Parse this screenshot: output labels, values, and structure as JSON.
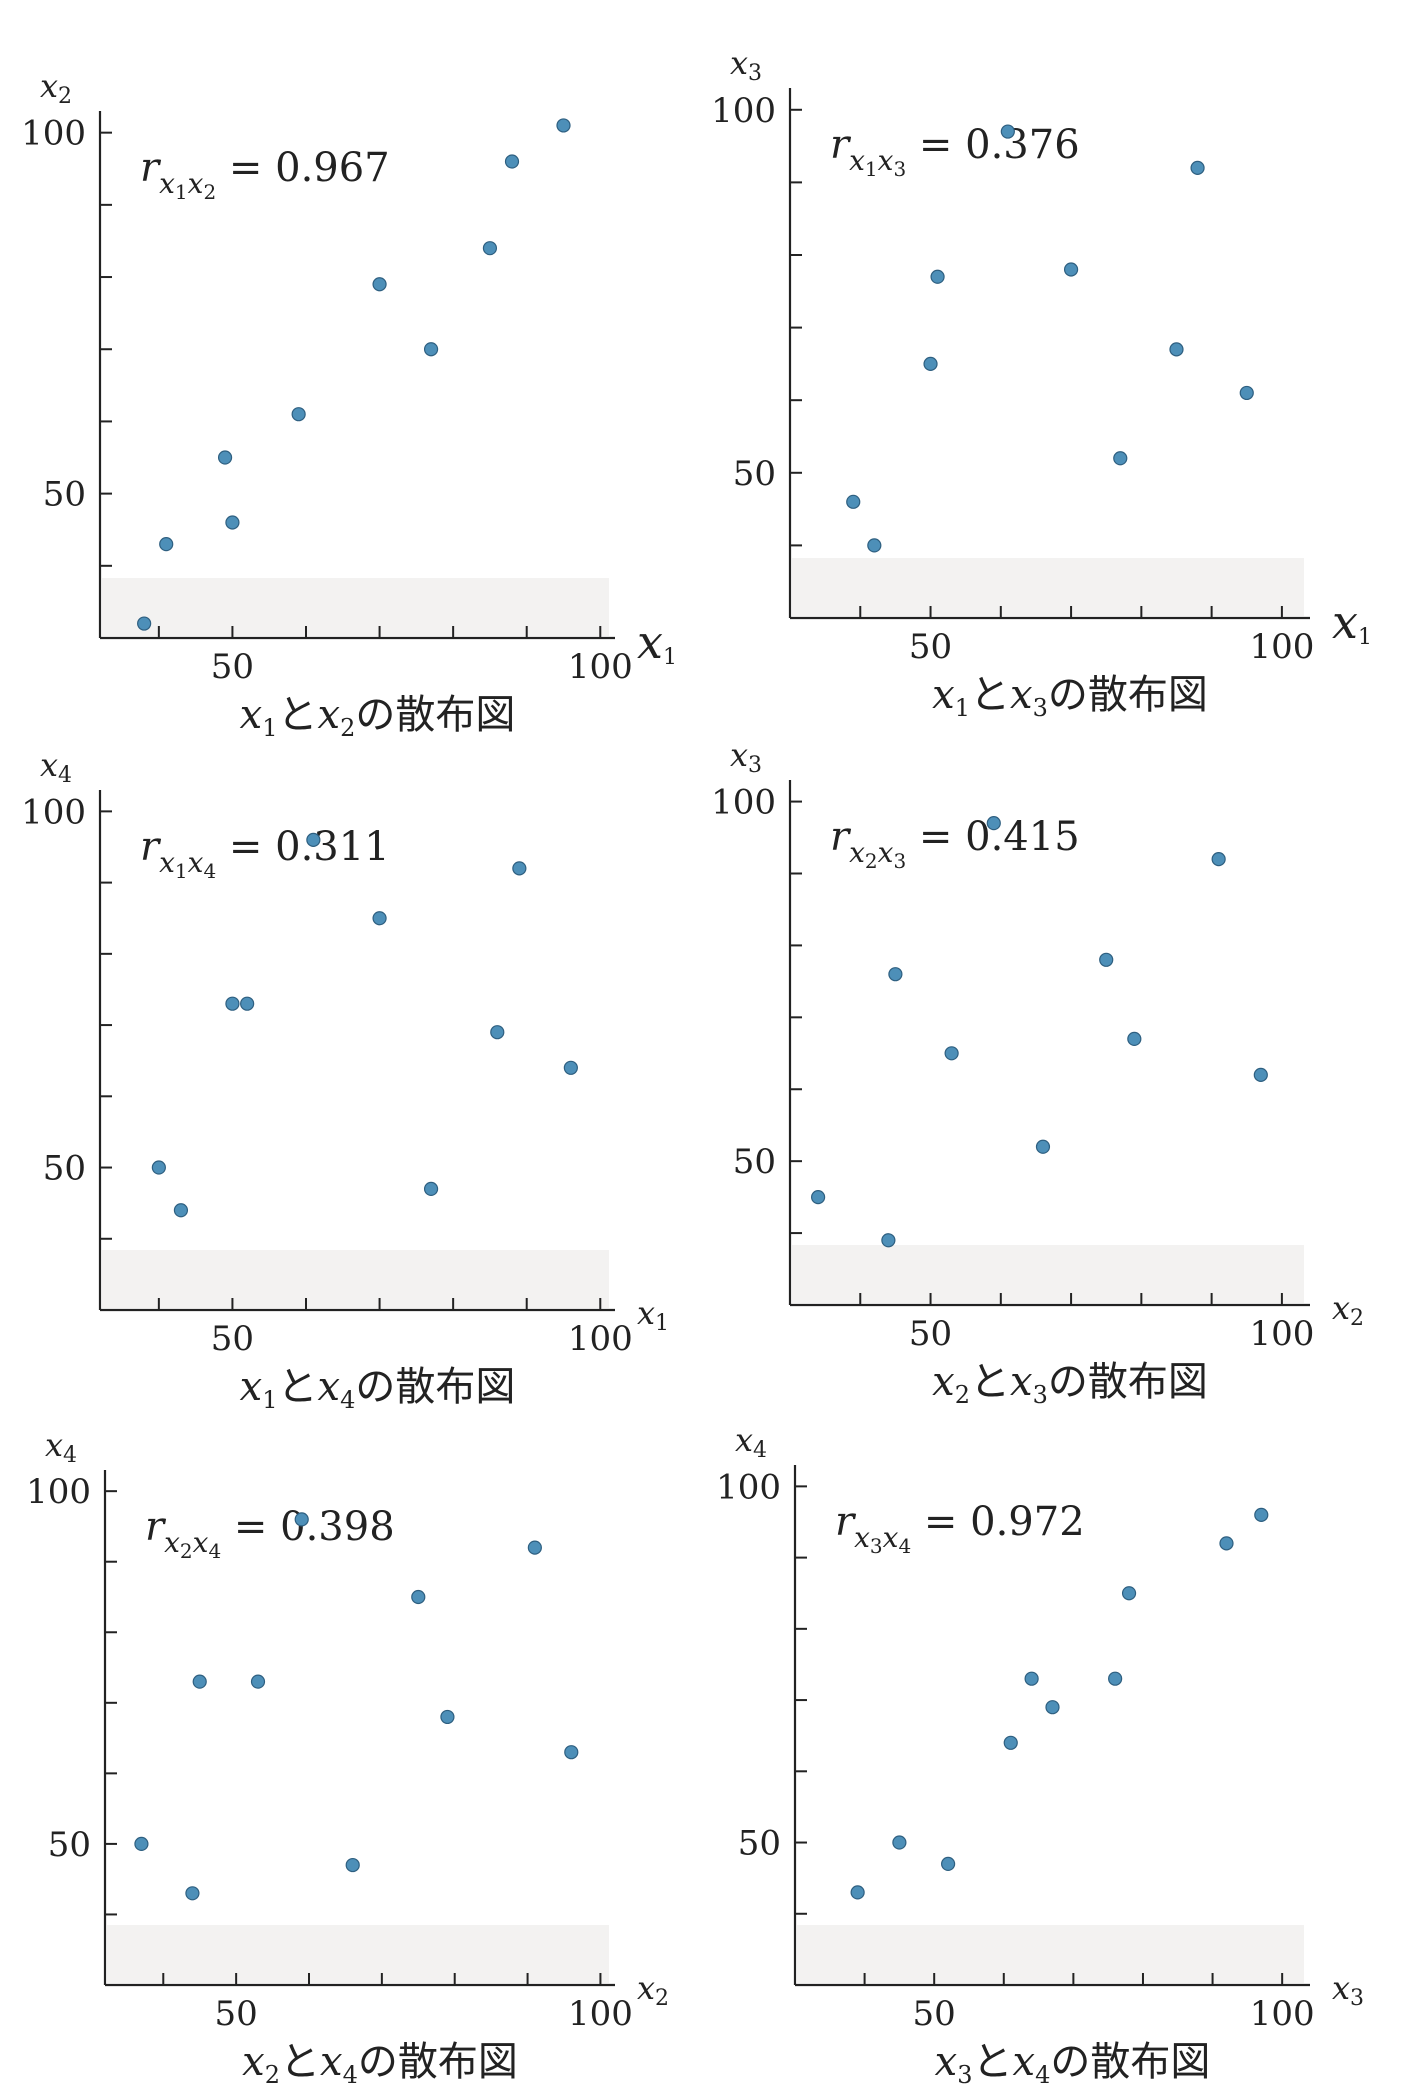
{
  "chart_data": [
    {
      "type": "scatter",
      "caption_parts": [
        "x",
        "1",
        "と",
        "x",
        "2",
        "の散布図"
      ],
      "xlabel": {
        "var": "x",
        "sub": "1"
      },
      "ylabel": {
        "var": "x",
        "sub": "2"
      },
      "correlation": {
        "r": "r",
        "sub1": "x",
        "subsub1": "1",
        "sub2": "x",
        "subsub2": "2",
        "eq": " = 0.967"
      },
      "x_ticks": [
        "50",
        "100"
      ],
      "y_ticks": [
        "50",
        "100"
      ],
      "xlim": [
        32,
        102
      ],
      "ylim": [
        30,
        103
      ],
      "points": [
        [
          38,
          32
        ],
        [
          41,
          43
        ],
        [
          49,
          55
        ],
        [
          50,
          46
        ],
        [
          59,
          61
        ],
        [
          70,
          79
        ],
        [
          77,
          70
        ],
        [
          85,
          84
        ],
        [
          88,
          96
        ],
        [
          95,
          101
        ]
      ]
    },
    {
      "type": "scatter",
      "caption_parts": [
        "x",
        "1",
        "と",
        "x",
        "3",
        "の散布図"
      ],
      "xlabel": {
        "var": "x",
        "sub": "1"
      },
      "ylabel": {
        "var": "x",
        "sub": "3"
      },
      "correlation": {
        "r": "r",
        "sub1": "x",
        "subsub1": "1",
        "sub2": "x",
        "subsub2": "3",
        "eq": " = 0.376"
      },
      "x_ticks": [
        "50",
        "100"
      ],
      "y_ticks": [
        "50",
        "100"
      ],
      "xlim": [
        30,
        104
      ],
      "ylim": [
        30,
        103
      ],
      "points": [
        [
          39,
          46
        ],
        [
          42,
          40
        ],
        [
          50,
          65
        ],
        [
          51,
          77
        ],
        [
          61,
          97
        ],
        [
          70,
          78
        ],
        [
          77,
          52
        ],
        [
          85,
          67
        ],
        [
          88,
          92
        ],
        [
          95,
          61
        ]
      ]
    },
    {
      "type": "scatter",
      "caption_parts": [
        "x",
        "1",
        "と",
        "x",
        "4",
        "の散布図"
      ],
      "xlabel": {
        "var": "x",
        "sub": "1"
      },
      "ylabel": {
        "var": "x",
        "sub": "4"
      },
      "correlation": {
        "r": "r",
        "sub1": "x",
        "subsub1": "1",
        "sub2": "x",
        "subsub2": "4",
        "eq": " = 0.311"
      },
      "x_ticks": [
        "50",
        "100"
      ],
      "y_ticks": [
        "50",
        "100"
      ],
      "xlim": [
        32,
        102
      ],
      "ylim": [
        30,
        103
      ],
      "points": [
        [
          40,
          50
        ],
        [
          43,
          44
        ],
        [
          50,
          73
        ],
        [
          52,
          73
        ],
        [
          61,
          96
        ],
        [
          70,
          85
        ],
        [
          77,
          47
        ],
        [
          86,
          69
        ],
        [
          89,
          92
        ],
        [
          96,
          64
        ]
      ]
    },
    {
      "type": "scatter",
      "caption_parts": [
        "x",
        "2",
        "と",
        "x",
        "3",
        "の散布図"
      ],
      "xlabel": {
        "var": "x",
        "sub": "2"
      },
      "ylabel": {
        "var": "x",
        "sub": "3"
      },
      "correlation": {
        "r": "r",
        "sub1": "x",
        "subsub1": "2",
        "sub2": "x",
        "subsub2": "3",
        "eq": " = 0.415"
      },
      "x_ticks": [
        "50",
        "100"
      ],
      "y_ticks": [
        "50",
        "100"
      ],
      "xlim": [
        30,
        104
      ],
      "ylim": [
        30,
        103
      ],
      "points": [
        [
          34,
          45
        ],
        [
          44,
          39
        ],
        [
          45,
          76
        ],
        [
          53,
          65
        ],
        [
          59,
          97
        ],
        [
          66,
          52
        ],
        [
          75,
          78
        ],
        [
          79,
          67
        ],
        [
          91,
          92
        ],
        [
          97,
          62
        ]
      ]
    },
    {
      "type": "scatter",
      "caption_parts": [
        "x",
        "2",
        "と",
        "x",
        "4",
        "の散布図"
      ],
      "xlabel": {
        "var": "x",
        "sub": "2"
      },
      "ylabel": {
        "var": "x",
        "sub": "4"
      },
      "correlation": {
        "r": "r",
        "sub1": "x",
        "subsub1": "2",
        "sub2": "x",
        "subsub2": "4",
        "eq": " = 0.398"
      },
      "x_ticks": [
        "50",
        "100"
      ],
      "y_ticks": [
        "50",
        "100"
      ],
      "xlim": [
        32,
        102
      ],
      "ylim": [
        30,
        103
      ],
      "points": [
        [
          37,
          50
        ],
        [
          44,
          43
        ],
        [
          45,
          73
        ],
        [
          53,
          73
        ],
        [
          59,
          96
        ],
        [
          66,
          47
        ],
        [
          75,
          85
        ],
        [
          79,
          68
        ],
        [
          91,
          92
        ],
        [
          96,
          63
        ]
      ]
    },
    {
      "type": "scatter",
      "caption_parts": [
        "x",
        "3",
        "と",
        "x",
        "4",
        "の散布図"
      ],
      "xlabel": {
        "var": "x",
        "sub": "3"
      },
      "ylabel": {
        "var": "x",
        "sub": "4"
      },
      "correlation": {
        "r": "r",
        "sub1": "x",
        "subsub1": "3",
        "sub2": "x",
        "subsub2": "4",
        "eq": " = 0.972"
      },
      "x_ticks": [
        "50",
        "100"
      ],
      "y_ticks": [
        "50",
        "100"
      ],
      "xlim": [
        30,
        104
      ],
      "ylim": [
        30,
        103
      ],
      "points": [
        [
          39,
          43
        ],
        [
          45,
          50
        ],
        [
          52,
          47
        ],
        [
          61,
          64
        ],
        [
          64,
          73
        ],
        [
          67,
          69
        ],
        [
          76,
          73
        ],
        [
          78,
          85
        ],
        [
          92,
          92
        ],
        [
          97,
          96
        ]
      ]
    }
  ]
}
